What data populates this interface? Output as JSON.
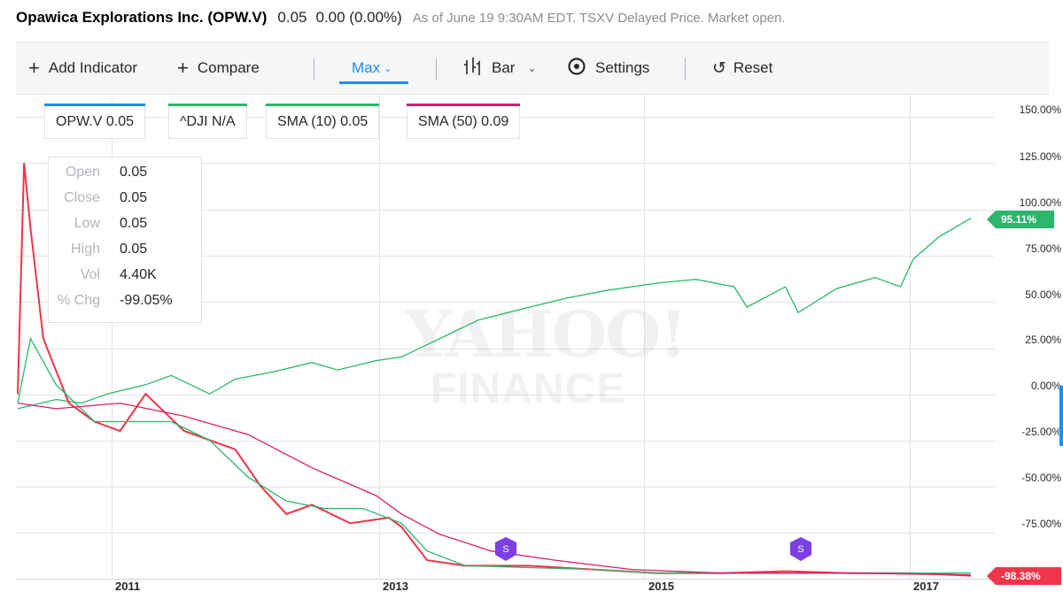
{
  "header": {
    "title": "Opawica Explorations Inc. (OPW.V)",
    "price": "0.05",
    "change": "0.00 (0.00%)",
    "as_of": "As of June 19 9:30AM EDT. TSXV Delayed Price. Market open."
  },
  "toolbar": {
    "add_indicator": "Add Indicator",
    "compare": "Compare",
    "range": "Max",
    "chart_type": "Bar",
    "settings": "Settings",
    "reset": "Reset",
    "icons": [
      "plus-icon",
      "plus-icon",
      "chevron-down-icon",
      "candlestick-icon",
      "chevron-down-icon",
      "gear-icon",
      "reset-icon"
    ]
  },
  "legend": [
    {
      "label": "OPW.V 0.05",
      "color": "#188fff"
    },
    {
      "label": "^DJI N/A",
      "color": "#2bb66b"
    },
    {
      "label": "SMA (10) 0.05",
      "color": "#2bb66b"
    },
    {
      "label": "SMA (50) 0.09",
      "color": "#d61f69"
    }
  ],
  "tooltip": {
    "rows": [
      {
        "key": "Open",
        "value": "0.05"
      },
      {
        "key": "Close",
        "value": "0.05"
      },
      {
        "key": "Low",
        "value": "0.05"
      },
      {
        "key": "High",
        "value": "0.05"
      },
      {
        "key": "Vol",
        "value": "4.40K"
      },
      {
        "key": "% Chg",
        "value": "-99.05%"
      }
    ]
  },
  "watermark": {
    "line1": "YAHOO!",
    "line2": "FINANCE"
  },
  "tags": {
    "dji": "95.11%",
    "opw": "-98.38%"
  },
  "marker_label": "S",
  "colors": {
    "up": "#2bb66b",
    "down": "#f0344a",
    "sma50": "#d61f69",
    "dji": "#2bb66b",
    "accent": "#188fff"
  },
  "chart_data": {
    "type": "line",
    "x_tick_labels": [
      "2011",
      "2013",
      "2015",
      "2017"
    ],
    "y_tick_labels": [
      "150.00%",
      "125.00%",
      "100.00%",
      "75.00%",
      "50.00%",
      "25.00%",
      "0.00%",
      "-25.00%",
      "-50.00%",
      "-75.00%"
    ],
    "y_scale": "percent change",
    "ylim": [
      -100,
      150
    ],
    "grid": true,
    "series": [
      {
        "name": "^DJI",
        "x": [
          2010.0,
          2010.3,
          2010.5,
          2010.7,
          2011.0,
          2011.2,
          2011.5,
          2011.7,
          2012.0,
          2012.3,
          2012.5,
          2012.8,
          2013.0,
          2013.3,
          2013.6,
          2014.0,
          2014.3,
          2014.6,
          2015.0,
          2015.3,
          2015.6,
          2015.7,
          2016.0,
          2016.1,
          2016.4,
          2016.7,
          2016.9,
          2017.0,
          2017.2,
          2017.45
        ],
        "values": [
          -8,
          -3,
          -5,
          0,
          5,
          10,
          0,
          8,
          12,
          17,
          13,
          18,
          20,
          30,
          40,
          47,
          52,
          56,
          60,
          62,
          58,
          47,
          58,
          44,
          57,
          63,
          58,
          73,
          85,
          95.11
        ]
      },
      {
        "name": "OPW.V",
        "x": [
          2010.0,
          2010.05,
          2010.1,
          2010.2,
          2010.4,
          2010.6,
          2010.8,
          2011.0,
          2011.3,
          2011.5,
          2011.7,
          2011.9,
          2012.1,
          2012.3,
          2012.6,
          2012.9,
          2013.0,
          2013.2,
          2013.5,
          2014.0,
          2014.5,
          2015.0,
          2015.5,
          2016.0,
          2016.5,
          2017.0,
          2017.45
        ],
        "values": [
          0,
          125,
          90,
          30,
          -5,
          -15,
          -20,
          0,
          -20,
          -25,
          -30,
          -50,
          -65,
          -60,
          -70,
          -67,
          -72,
          -90,
          -93,
          -93,
          -95,
          -97,
          -97,
          -96,
          -97,
          -97,
          -98.38
        ]
      },
      {
        "name": "SMA (10)",
        "x": [
          2010.0,
          2010.1,
          2010.3,
          2010.6,
          2010.9,
          2011.2,
          2011.5,
          2011.8,
          2012.1,
          2012.4,
          2012.7,
          2013.0,
          2013.2,
          2013.5,
          2014.0,
          2014.5,
          2015.0,
          2016.0,
          2017.0,
          2017.45
        ],
        "values": [
          -5,
          30,
          5,
          -15,
          -15,
          -15,
          -25,
          -45,
          -58,
          -62,
          -62,
          -70,
          -85,
          -93,
          -94,
          -95,
          -97,
          -97,
          -97,
          -97
        ]
      },
      {
        "name": "SMA (50)",
        "x": [
          2010.0,
          2010.3,
          2010.8,
          2011.3,
          2011.8,
          2012.3,
          2012.8,
          2013.0,
          2013.3,
          2013.7,
          2014.2,
          2014.8,
          2015.5,
          2016.5,
          2017.45
        ],
        "values": [
          -5,
          -8,
          -5,
          -12,
          -22,
          -40,
          -55,
          -65,
          -76,
          -85,
          -90,
          -95,
          -97,
          -97,
          -98
        ]
      }
    ]
  }
}
